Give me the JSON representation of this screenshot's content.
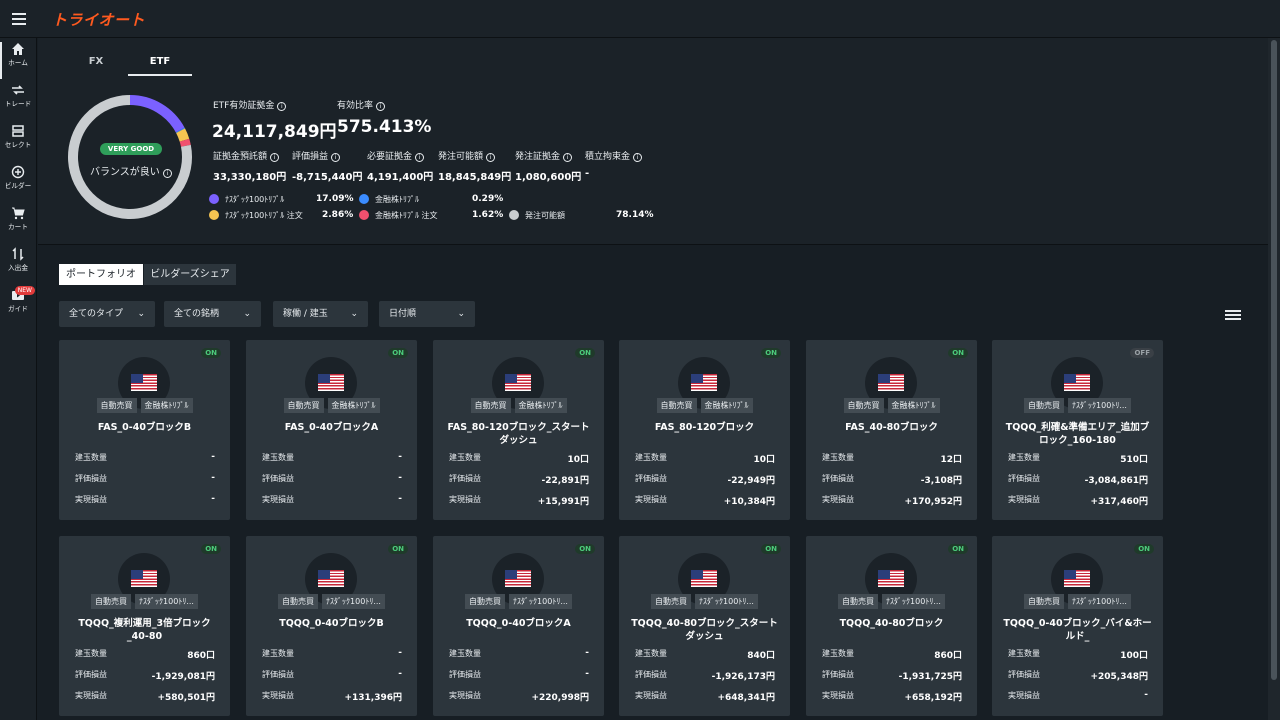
{
  "header": {
    "logo_text": "トライオート"
  },
  "nav": [
    {
      "label": "ホーム",
      "icon": "home-icon"
    },
    {
      "label": "トレード",
      "icon": "trade-icon"
    },
    {
      "label": "セレクト",
      "icon": "select-icon"
    },
    {
      "label": "ビルダー",
      "icon": "builder-icon"
    },
    {
      "label": "カート",
      "icon": "cart-icon"
    },
    {
      "label": "入出金",
      "icon": "transfer-icon"
    },
    {
      "label": "ガイド",
      "icon": "guide-icon",
      "badge": "NEW"
    }
  ],
  "tabs": [
    "FX",
    "ETF"
  ],
  "summary": {
    "status_badge": "VERY GOOD",
    "balance_text": "バランスが良い",
    "effective_margin_label": "ETF有効証拠金",
    "effective_margin_value": "24,117,849円",
    "effective_ratio_label": "有効比率",
    "effective_ratio_value": "575.413%",
    "deposit_label": "証拠金預託額",
    "deposit_value": "33,330,180円",
    "unrealized_label": "評価損益",
    "unrealized_value": "-8,715,440円",
    "required_label": "必要証拠金",
    "required_value": "4,191,400円",
    "orderable_label": "発注可能額",
    "orderable_value": "18,845,849円",
    "order_margin_label": "発注証拠金",
    "order_margin_value": "1,080,600円",
    "accum_label": "積立拘束金",
    "accum_value": "-"
  },
  "legend": [
    {
      "label": "ﾅｽﾀﾞｯｸ100ﾄﾘﾌﾟﾙ",
      "value": "17.09%",
      "color": "#7b61ff"
    },
    {
      "label": "金融株ﾄﾘﾌﾟﾙ",
      "value": "0.29%",
      "color": "#3b8cff"
    },
    {
      "label": "ﾅｽﾀﾞｯｸ100ﾄﾘﾌﾟﾙ 注文",
      "value": "2.86%",
      "color": "#f5c451"
    },
    {
      "label": "金融株ﾄﾘﾌﾟﾙ 注文",
      "value": "1.62%",
      "color": "#f0506e"
    },
    {
      "label": "発注可能額",
      "value": "78.14%",
      "color": "#c9cdd0"
    }
  ],
  "subtabs": [
    "ポートフォリオ",
    "ビルダーズシェア"
  ],
  "filters": [
    "全てのタイプ",
    "全ての銘柄",
    "稼働 / 建玉",
    "日付順"
  ],
  "row_labels": {
    "position": "建玉数量",
    "unrealized": "評価損益",
    "realized": "実現損益"
  },
  "cards": [
    {
      "status": "ON",
      "tags": [
        "自動売買",
        "金融株ﾄﾘﾌﾟﾙ"
      ],
      "name": "FAS_0-40ブロックB",
      "position": "-",
      "unrealized": "-",
      "realized": "-"
    },
    {
      "status": "ON",
      "tags": [
        "自動売買",
        "金融株ﾄﾘﾌﾟﾙ"
      ],
      "name": "FAS_0-40ブロックA",
      "position": "-",
      "unrealized": "-",
      "realized": "-"
    },
    {
      "status": "ON",
      "tags": [
        "自動売買",
        "金融株ﾄﾘﾌﾟﾙ"
      ],
      "name": "FAS_80-120ブロック_スタートダッシュ",
      "position": "10口",
      "unrealized": "-22,891円",
      "realized": "+15,991円"
    },
    {
      "status": "ON",
      "tags": [
        "自動売買",
        "金融株ﾄﾘﾌﾟﾙ"
      ],
      "name": "FAS_80-120ブロック",
      "position": "10口",
      "unrealized": "-22,949円",
      "realized": "+10,384円"
    },
    {
      "status": "ON",
      "tags": [
        "自動売買",
        "金融株ﾄﾘﾌﾟﾙ"
      ],
      "name": "FAS_40-80ブロック",
      "position": "12口",
      "unrealized": "-3,108円",
      "realized": "+170,952円"
    },
    {
      "status": "OFF",
      "tags": [
        "自動売買",
        "ﾅｽﾀﾞｯｸ100ﾄﾘ..."
      ],
      "name": "TQQQ_利確&準備エリア_追加ブロック_160-180",
      "position": "510口",
      "unrealized": "-3,084,861円",
      "realized": "+317,460円"
    },
    {
      "status": "ON",
      "tags": [
        "自動売買",
        "ﾅｽﾀﾞｯｸ100ﾄﾘ..."
      ],
      "name": "TQQQ_複利運用_3倍ブロック_40-80",
      "position": "860口",
      "unrealized": "-1,929,081円",
      "realized": "+580,501円"
    },
    {
      "status": "ON",
      "tags": [
        "自動売買",
        "ﾅｽﾀﾞｯｸ100ﾄﾘ..."
      ],
      "name": "TQQQ_0-40ブロックB",
      "position": "-",
      "unrealized": "-",
      "realized": "+131,396円"
    },
    {
      "status": "ON",
      "tags": [
        "自動売買",
        "ﾅｽﾀﾞｯｸ100ﾄﾘ..."
      ],
      "name": "TQQQ_0-40ブロックA",
      "position": "-",
      "unrealized": "-",
      "realized": "+220,998円"
    },
    {
      "status": "ON",
      "tags": [
        "自動売買",
        "ﾅｽﾀﾞｯｸ100ﾄﾘ..."
      ],
      "name": "TQQQ_40-80ブロック_スタートダッシュ",
      "position": "840口",
      "unrealized": "-1,926,173円",
      "realized": "+648,341円"
    },
    {
      "status": "ON",
      "tags": [
        "自動売買",
        "ﾅｽﾀﾞｯｸ100ﾄﾘ..."
      ],
      "name": "TQQQ_40-80ブロック",
      "position": "860口",
      "unrealized": "-1,931,725円",
      "realized": "+658,192円"
    },
    {
      "status": "ON",
      "tags": [
        "自動売買",
        "ﾅｽﾀﾞｯｸ100ﾄﾘ..."
      ],
      "name": "TQQQ_0-40ブロック_バイ&ホールド_",
      "position": "100口",
      "unrealized": "+205,348円",
      "realized": "-"
    }
  ]
}
